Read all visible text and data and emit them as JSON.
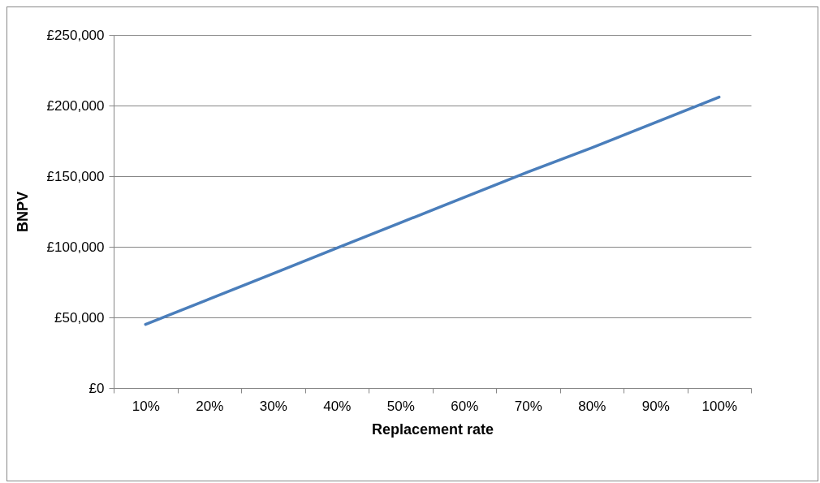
{
  "chart_data": {
    "type": "line",
    "xlabel": "Replacement rate",
    "ylabel": "BNPV",
    "categories": [
      "10%",
      "20%",
      "30%",
      "40%",
      "50%",
      "60%",
      "70%",
      "80%",
      "90%",
      "100%"
    ],
    "series": [
      {
        "color": "#4a7ebb",
        "values": [
          45000,
          63000,
          81000,
          99000,
          117000,
          135000,
          153000,
          170000,
          188000,
          206000
        ]
      }
    ],
    "ylim": [
      0,
      250000
    ],
    "yticks": [
      {
        "value": 0,
        "label": "£0"
      },
      {
        "value": 50000,
        "label": "£50,000"
      },
      {
        "value": 100000,
        "label": "£100,000"
      },
      {
        "value": 150000,
        "label": "£150,000"
      },
      {
        "value": 200000,
        "label": "£200,000"
      },
      {
        "value": 250000,
        "label": "£250,000"
      }
    ],
    "grid": "y",
    "legend": false,
    "marker": "none",
    "line_style": "solid"
  }
}
